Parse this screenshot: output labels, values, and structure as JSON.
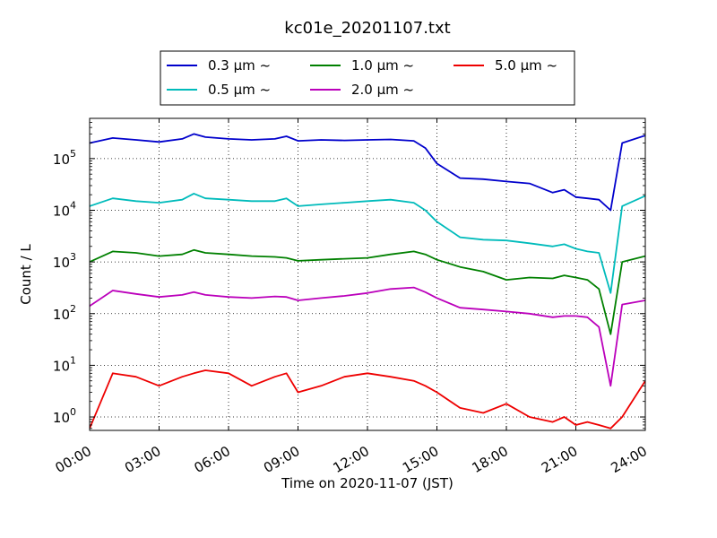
{
  "chart_data": {
    "type": "line",
    "title": "kc01e_20201107.txt",
    "xlabel": "Time on 2020-11-07 (JST)",
    "ylabel": "Count / L",
    "y_scale": "log",
    "xlim": [
      "00:00",
      "24:00"
    ],
    "ylim": [
      0.55,
      600000
    ],
    "x_ticks": [
      "00:00",
      "03:00",
      "06:00",
      "09:00",
      "12:00",
      "15:00",
      "18:00",
      "21:00",
      "24:00"
    ],
    "y_ticks": [
      {
        "value": 1,
        "label": "10",
        "exp": "0"
      },
      {
        "value": 10,
        "label": "10",
        "exp": "1"
      },
      {
        "value": 100,
        "label": "10",
        "exp": "2"
      },
      {
        "value": 1000,
        "label": "10",
        "exp": "3"
      },
      {
        "value": 10000,
        "label": "10",
        "exp": "4"
      },
      {
        "value": 100000,
        "label": "10",
        "exp": "5"
      }
    ],
    "grid": true,
    "legend_placement": "top-center",
    "x_hours": [
      0,
      1,
      2,
      3,
      4,
      4.5,
      5,
      6,
      7,
      8,
      8.5,
      9,
      10,
      11,
      12,
      13,
      14,
      14.5,
      15,
      16,
      17,
      18,
      19,
      20,
      20.5,
      21,
      21.5,
      22,
      22.5,
      23,
      24
    ],
    "series": [
      {
        "name": "0.3 µm ~",
        "color": "#0000cc",
        "values": [
          200000,
          250000,
          230000,
          210000,
          240000,
          300000,
          260000,
          240000,
          230000,
          240000,
          270000,
          220000,
          230000,
          225000,
          230000,
          235000,
          220000,
          160000,
          80000,
          42000,
          40000,
          36000,
          33000,
          22000,
          25000,
          18000,
          17000,
          16000,
          10000,
          200000,
          280000
        ]
      },
      {
        "name": "0.5 µm ~",
        "color": "#00bbbb",
        "values": [
          12000,
          17000,
          15000,
          14000,
          16000,
          21000,
          17000,
          16000,
          15000,
          15000,
          17000,
          12000,
          13000,
          14000,
          15000,
          16000,
          14000,
          10000,
          6000,
          3000,
          2700,
          2600,
          2300,
          2000,
          2200,
          1800,
          1600,
          1500,
          250,
          12000,
          19000
        ]
      },
      {
        "name": "1.0 µm ~",
        "color": "#008000",
        "values": [
          1000,
          1600,
          1500,
          1300,
          1400,
          1700,
          1500,
          1400,
          1300,
          1250,
          1200,
          1050,
          1100,
          1150,
          1200,
          1400,
          1600,
          1400,
          1100,
          800,
          650,
          450,
          500,
          480,
          550,
          500,
          450,
          300,
          40,
          1000,
          1300
        ]
      },
      {
        "name": "2.0 µm ~",
        "color": "#bb00bb",
        "values": [
          140,
          280,
          240,
          210,
          230,
          260,
          230,
          210,
          200,
          215,
          210,
          180,
          200,
          220,
          250,
          300,
          320,
          260,
          200,
          130,
          120,
          110,
          100,
          85,
          90,
          90,
          85,
          55,
          4,
          150,
          180
        ]
      },
      {
        "name": "5.0 µm ~",
        "color": "#ee0000",
        "values": [
          0.6,
          7,
          6,
          4,
          6,
          7,
          8,
          7,
          4,
          6,
          7,
          3,
          4,
          6,
          7,
          6,
          5,
          4,
          3,
          1.5,
          1.2,
          1.8,
          1,
          0.8,
          1,
          0.7,
          0.8,
          0.7,
          0.6,
          1,
          5
        ]
      }
    ]
  }
}
